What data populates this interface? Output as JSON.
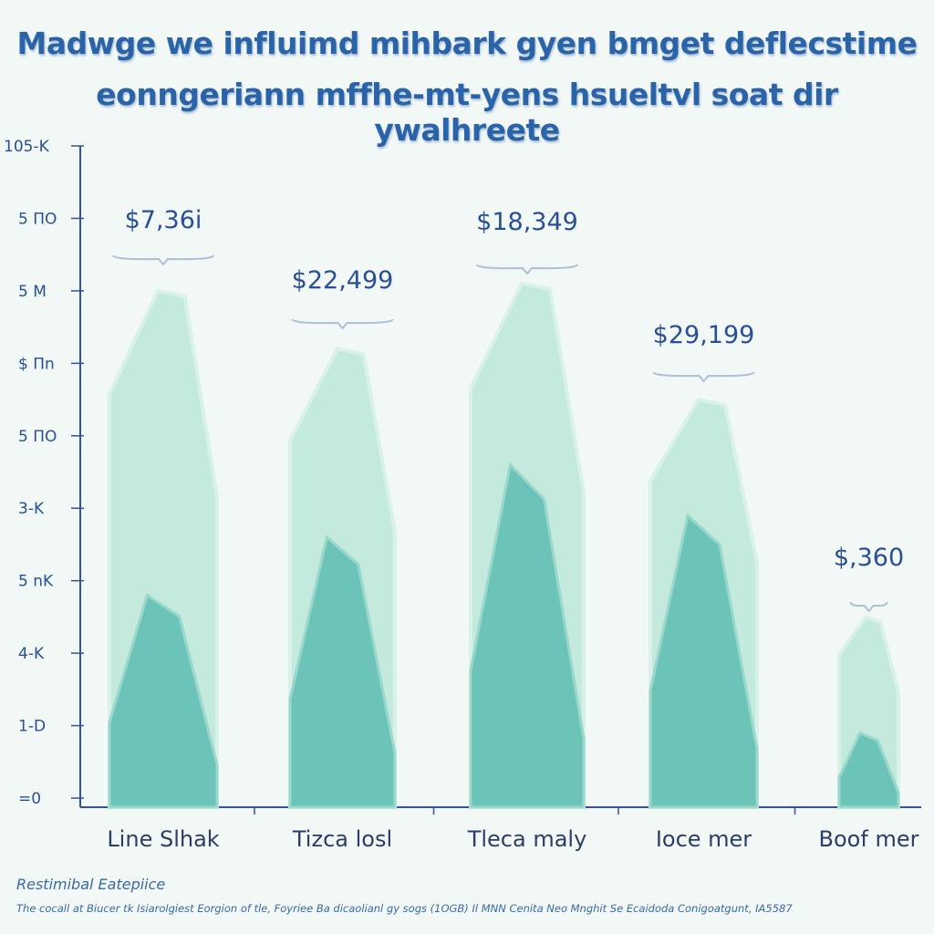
{
  "title_line1": "Madwge we influimd mihbark gyen bmget deflecstime",
  "title_line2": "eonngeriann mffhe-mt-yens hsueltvl soat dir ywalhreete",
  "chart_data": {
    "type": "area",
    "title": "Madwge we influimd mihbark gyen bmget deflecstime eonngeriann mffhe-mt-yens hsueltvl soat dir ywalhreete",
    "y_tick_labels": [
      "=0",
      "1-D",
      "4-K",
      "5 nK",
      "3-K",
      "5 ΠO",
      "$ Πn",
      "5 M",
      "5 ΠO",
      "105-K"
    ],
    "ylim": [
      0,
      9
    ],
    "categories": [
      "Line Slhak",
      "Tizca losl",
      "Tleca maly",
      "Ioce mer",
      "Boof mer"
    ],
    "data_labels": [
      "$7,36i",
      "$22,499",
      "$18,349",
      "$29,199",
      "$,360"
    ],
    "series": [
      {
        "name": "outer",
        "values": [
          7.0,
          6.2,
          7.1,
          5.5,
          2.5
        ]
      },
      {
        "name": "inner",
        "values": [
          2.8,
          3.6,
          4.6,
          3.9,
          0.9
        ]
      }
    ],
    "colors": {
      "outer": "#c4e9dd",
      "inner": "#6cc4b8",
      "axis": "#34529a",
      "text": "#2a4f96"
    },
    "grid": false
  },
  "footer": {
    "heading": "Restimibal Eatepiice",
    "note": "The cocall at Biucer tk Isiarolgiest Eorgion of tle, Foyriee Ba dicaolianl gy sogs (1OGB) Il MNN Cenita Neo Mnghit Se Ecaidoda Conigoatgunt, IA5587"
  }
}
